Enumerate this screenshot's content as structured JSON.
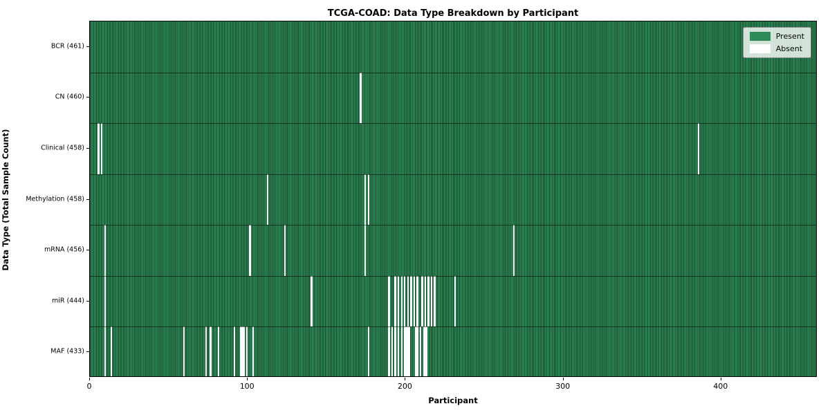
{
  "chart_data": {
    "type": "heatmap",
    "title": "TCGA-COAD: Data Type Breakdown by Participant",
    "xlabel": "Participant",
    "ylabel": "Data Type (Total Sample Count)",
    "x_ticks": [
      0,
      100,
      200,
      300,
      400
    ],
    "x_range": [
      0,
      461
    ],
    "n_participants": 461,
    "grid": false,
    "legend": {
      "position": "upper-right",
      "entries": [
        {
          "label": "Present",
          "color": "#2e8b57"
        },
        {
          "label": "Absent",
          "color": "#ffffff"
        }
      ]
    },
    "colors": {
      "present": "#2e8b57",
      "absent": "#ffffff",
      "cell_edge": "#17482c",
      "plot_border": "#000000"
    },
    "rows": [
      {
        "label": "BCR (461)",
        "data_type": "BCR",
        "present_count": 461,
        "absent_participants": []
      },
      {
        "label": "CN (460)",
        "data_type": "CN",
        "present_count": 460,
        "absent_participants": [
          171
        ]
      },
      {
        "label": "Clinical (458)",
        "data_type": "Clinical",
        "present_count": 458,
        "absent_participants": [
          5,
          7,
          385
        ]
      },
      {
        "label": "Methylation (458)",
        "data_type": "Methylation",
        "present_count": 458,
        "absent_participants": [
          112,
          174,
          176
        ]
      },
      {
        "label": "mRNA (456)",
        "data_type": "mRNA",
        "present_count": 456,
        "absent_participants": [
          9,
          101,
          123,
          174,
          268
        ]
      },
      {
        "label": "miR (444)",
        "data_type": "miR",
        "present_count": 444,
        "absent_participants": [
          9,
          140,
          189,
          193,
          195,
          197,
          199,
          201,
          203,
          205,
          207,
          210,
          212,
          214,
          216,
          218,
          231
        ]
      },
      {
        "label": "MAF (433)",
        "data_type": "MAF",
        "present_count": 433,
        "absent_participants": [
          9,
          13,
          59,
          73,
          76,
          81,
          91,
          95,
          96,
          97,
          99,
          103,
          176,
          189,
          191,
          193,
          195,
          197,
          199,
          200,
          201,
          202,
          206,
          207,
          209,
          211,
          212,
          213
        ]
      }
    ]
  }
}
